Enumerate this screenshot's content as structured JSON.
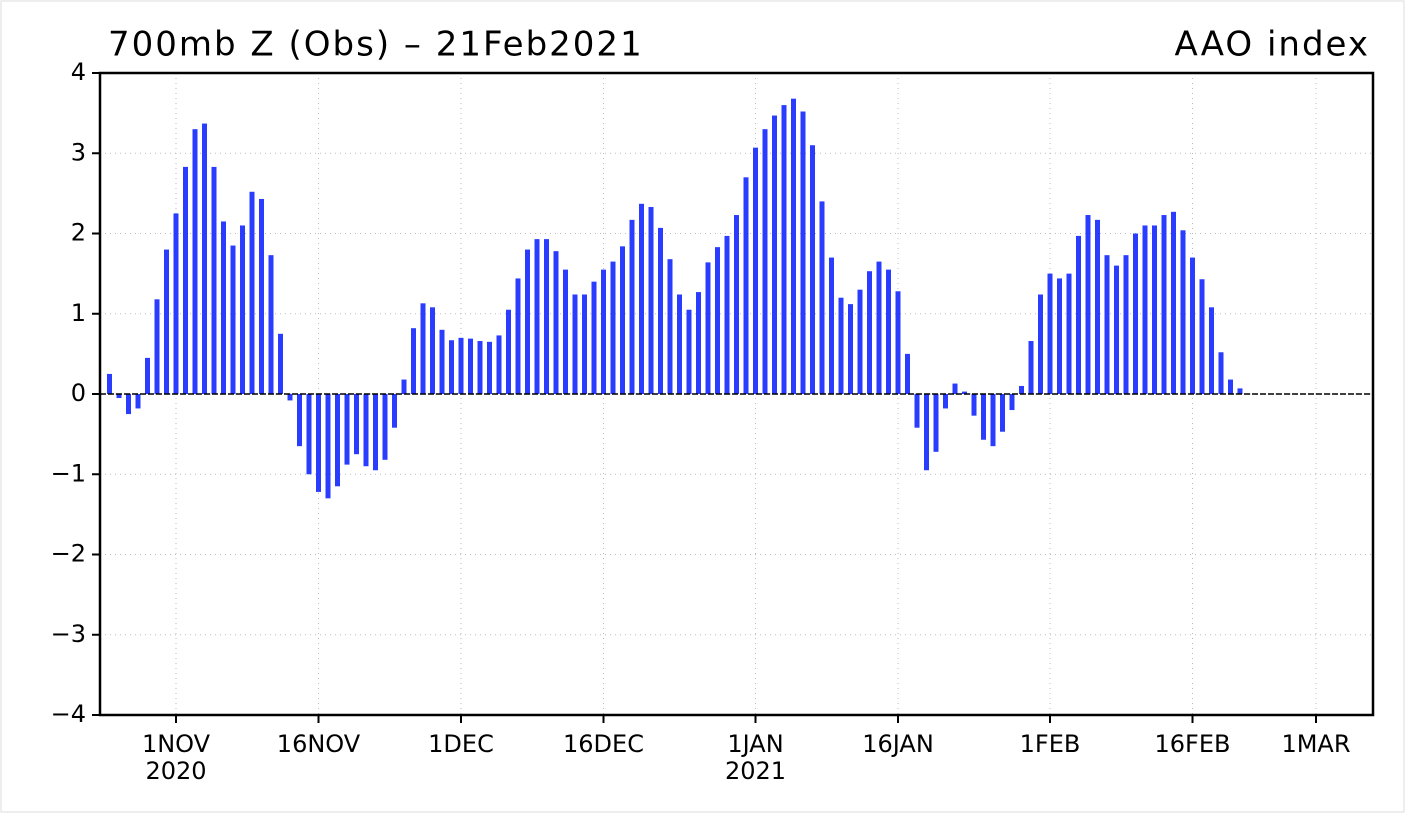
{
  "chart_data": {
    "type": "bar",
    "title": "700mb Z (Obs) – 21Feb2021",
    "subtitle": "AAO index",
    "color": "#2a3cff",
    "grid": true,
    "x": [
      "2020-10-25",
      "2020-10-26",
      "2020-10-27",
      "2020-10-28",
      "2020-10-29",
      "2020-10-30",
      "2020-10-31",
      "2020-11-01",
      "2020-11-02",
      "2020-11-03",
      "2020-11-04",
      "2020-11-05",
      "2020-11-06",
      "2020-11-07",
      "2020-11-08",
      "2020-11-09",
      "2020-11-10",
      "2020-11-11",
      "2020-11-12",
      "2020-11-13",
      "2020-11-14",
      "2020-11-15",
      "2020-11-16",
      "2020-11-17",
      "2020-11-18",
      "2020-11-19",
      "2020-11-20",
      "2020-11-21",
      "2020-11-22",
      "2020-11-23",
      "2020-11-24",
      "2020-11-25",
      "2020-11-26",
      "2020-11-27",
      "2020-11-28",
      "2020-11-29",
      "2020-11-30",
      "2020-12-01",
      "2020-12-02",
      "2020-12-03",
      "2020-12-04",
      "2020-12-05",
      "2020-12-06",
      "2020-12-07",
      "2020-12-08",
      "2020-12-09",
      "2020-12-10",
      "2020-12-11",
      "2020-12-12",
      "2020-12-13",
      "2020-12-14",
      "2020-12-15",
      "2020-12-16",
      "2020-12-17",
      "2020-12-18",
      "2020-12-19",
      "2020-12-20",
      "2020-12-21",
      "2020-12-22",
      "2020-12-23",
      "2020-12-24",
      "2020-12-25",
      "2020-12-26",
      "2020-12-27",
      "2020-12-28",
      "2020-12-29",
      "2020-12-30",
      "2020-12-31",
      "2021-01-01",
      "2021-01-02",
      "2021-01-03",
      "2021-01-04",
      "2021-01-05",
      "2021-01-06",
      "2021-01-07",
      "2021-01-08",
      "2021-01-09",
      "2021-01-10",
      "2021-01-11",
      "2021-01-12",
      "2021-01-13",
      "2021-01-14",
      "2021-01-15",
      "2021-01-16",
      "2021-01-17",
      "2021-01-18",
      "2021-01-19",
      "2021-01-20",
      "2021-01-21",
      "2021-01-22",
      "2021-01-23",
      "2021-01-24",
      "2021-01-25",
      "2021-01-26",
      "2021-01-27",
      "2021-01-28",
      "2021-01-29",
      "2021-01-30",
      "2021-01-31",
      "2021-02-01",
      "2021-02-02",
      "2021-02-03",
      "2021-02-04",
      "2021-02-05",
      "2021-02-06",
      "2021-02-07",
      "2021-02-08",
      "2021-02-09",
      "2021-02-10",
      "2021-02-11",
      "2021-02-12",
      "2021-02-13",
      "2021-02-14",
      "2021-02-15",
      "2021-02-16",
      "2021-02-17",
      "2021-02-18",
      "2021-02-19",
      "2021-02-20",
      "2021-02-21"
    ],
    "values": [
      0.25,
      -0.05,
      -0.25,
      -0.18,
      0.45,
      1.18,
      1.8,
      2.25,
      2.83,
      3.3,
      3.37,
      2.83,
      2.15,
      1.85,
      2.1,
      2.52,
      2.43,
      1.73,
      0.75,
      -0.08,
      -0.65,
      -1.0,
      -1.22,
      -1.3,
      -1.15,
      -0.88,
      -0.75,
      -0.9,
      -0.95,
      -0.82,
      -0.42,
      0.18,
      0.82,
      1.13,
      1.08,
      0.8,
      0.67,
      0.7,
      0.69,
      0.66,
      0.65,
      0.73,
      1.05,
      1.44,
      1.8,
      1.93,
      1.93,
      1.78,
      1.55,
      1.24,
      1.24,
      1.4,
      1.55,
      1.65,
      1.84,
      2.17,
      2.37,
      2.33,
      2.07,
      1.68,
      1.24,
      1.05,
      1.27,
      1.64,
      1.83,
      1.97,
      2.23,
      2.7,
      3.07,
      3.3,
      3.47,
      3.6,
      3.68,
      3.52,
      3.1,
      2.4,
      1.7,
      1.2,
      1.12,
      1.3,
      1.53,
      1.65,
      1.55,
      1.28,
      0.5,
      -0.42,
      -0.95,
      -0.72,
      -0.18,
      0.13,
      0.03,
      -0.27,
      -0.57,
      -0.65,
      -0.47,
      -0.2,
      0.1,
      0.66,
      1.24,
      1.5,
      1.44,
      1.5,
      1.97,
      2.23,
      2.17,
      1.73,
      1.6,
      1.73,
      2.0,
      2.1,
      2.1,
      2.23,
      2.27,
      2.04,
      1.7,
      1.43,
      1.08,
      0.52,
      0.18,
      0.07
    ],
    "xlim": [
      "2020-10-24",
      "2021-03-07"
    ],
    "xticks": [
      {
        "value": "2020-11-01",
        "label": "1NOV",
        "year": "2020"
      },
      {
        "value": "2020-11-16",
        "label": "16NOV"
      },
      {
        "value": "2020-12-01",
        "label": "1DEC"
      },
      {
        "value": "2020-12-16",
        "label": "16DEC"
      },
      {
        "value": "2021-01-01",
        "label": "1JAN",
        "year": "2021"
      },
      {
        "value": "2021-01-16",
        "label": "16JAN"
      },
      {
        "value": "2021-02-01",
        "label": "1FEB"
      },
      {
        "value": "2021-02-16",
        "label": "16FEB"
      },
      {
        "value": "2021-03-01",
        "label": "1MAR"
      }
    ],
    "ylim": [
      -4,
      4
    ],
    "yticks": [
      {
        "value": -4,
        "label": "−4"
      },
      {
        "value": -3,
        "label": "−3"
      },
      {
        "value": -2,
        "label": "−2"
      },
      {
        "value": -1,
        "label": "−1"
      },
      0,
      1,
      2,
      3,
      4
    ]
  }
}
